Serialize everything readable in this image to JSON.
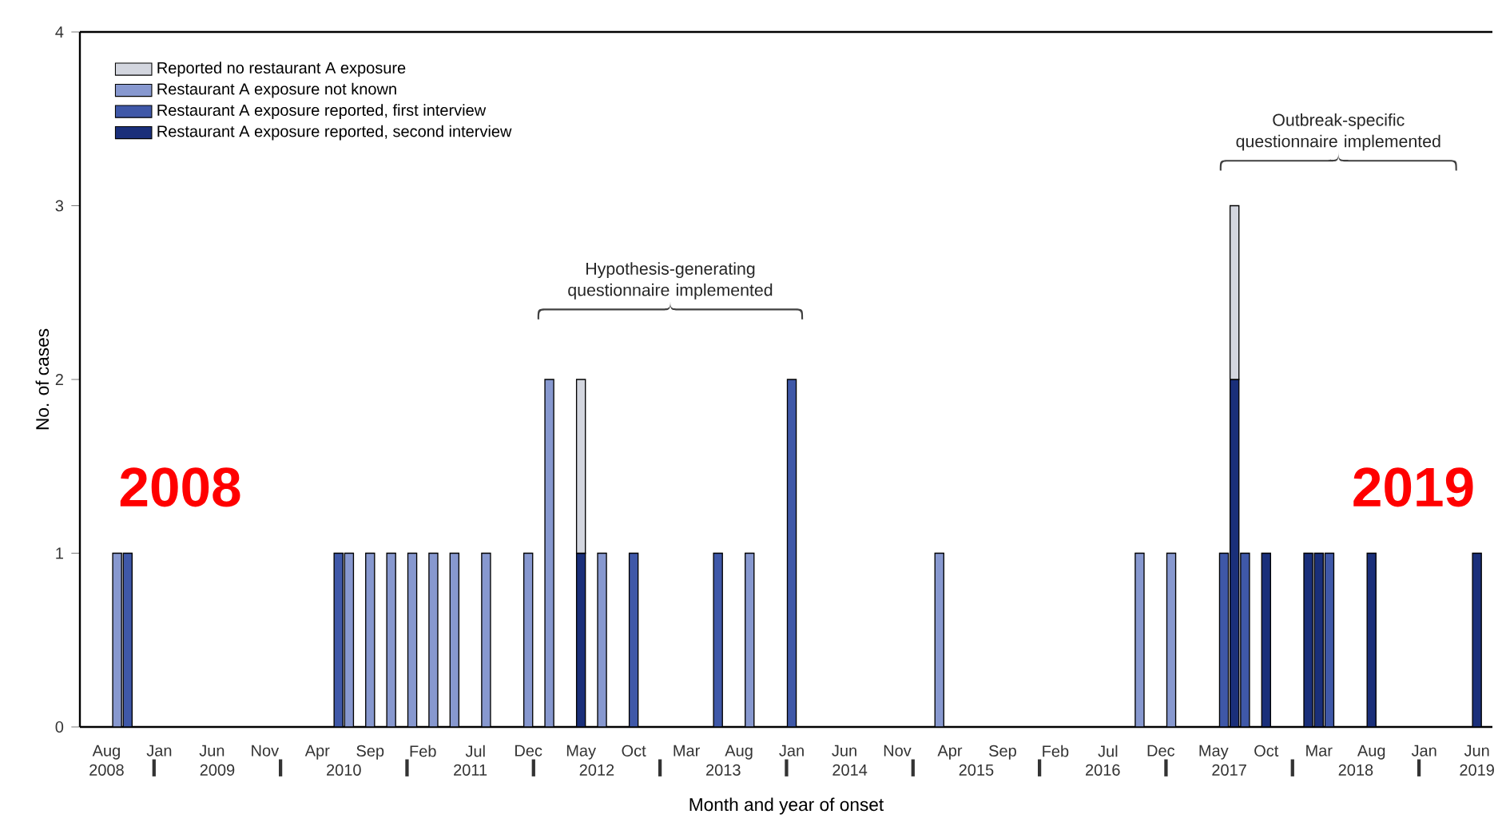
{
  "chart_data": {
    "type": "bar",
    "stacked": true,
    "xlabel": "Month and year of onset",
    "ylabel": "No. of cases",
    "xlim": [
      "2008-05-15",
      "2019-07-15"
    ],
    "ylim": [
      0,
      4
    ],
    "yticks": [
      0,
      1,
      2,
      3,
      4
    ],
    "xticks": [
      {
        "value": "2008-08",
        "label": "Aug"
      },
      {
        "value": "2009-01",
        "label": "Jan"
      },
      {
        "value": "2009-06",
        "label": "Jun"
      },
      {
        "value": "2009-11",
        "label": "Nov"
      },
      {
        "value": "2010-04",
        "label": "Apr"
      },
      {
        "value": "2010-09",
        "label": "Sep"
      },
      {
        "value": "2011-02",
        "label": "Feb"
      },
      {
        "value": "2011-07",
        "label": "Jul"
      },
      {
        "value": "2011-12",
        "label": "Dec"
      },
      {
        "value": "2012-05",
        "label": "May"
      },
      {
        "value": "2012-10",
        "label": "Oct"
      },
      {
        "value": "2013-03",
        "label": "Mar"
      },
      {
        "value": "2013-08",
        "label": "Aug"
      },
      {
        "value": "2014-01",
        "label": "Jan"
      },
      {
        "value": "2014-06",
        "label": "Jun"
      },
      {
        "value": "2014-11",
        "label": "Nov"
      },
      {
        "value": "2015-04",
        "label": "Apr"
      },
      {
        "value": "2015-09",
        "label": "Sep"
      },
      {
        "value": "2016-02",
        "label": "Feb"
      },
      {
        "value": "2016-07",
        "label": "Jul"
      },
      {
        "value": "2016-12",
        "label": "Dec"
      },
      {
        "value": "2017-05",
        "label": "May"
      },
      {
        "value": "2017-10",
        "label": "Oct"
      },
      {
        "value": "2018-03",
        "label": "Mar"
      },
      {
        "value": "2018-08",
        "label": "Aug"
      },
      {
        "value": "2019-01",
        "label": "Jan"
      },
      {
        "value": "2019-06",
        "label": "Jun"
      }
    ],
    "x2lim": [
      "2008-05-15",
      "2019-07-15"
    ],
    "x2ticks": [
      {
        "value": "2008-08-01",
        "label": "2008"
      },
      {
        "value": "2009-06-16",
        "label": "2009"
      },
      {
        "value": "2010-06-16",
        "label": "2010"
      },
      {
        "value": "2011-06-16",
        "label": "2011"
      },
      {
        "value": "2012-06-16",
        "label": "2012"
      },
      {
        "value": "2013-06-16",
        "label": "2013"
      },
      {
        "value": "2014-06-16",
        "label": "2014"
      },
      {
        "value": "2015-06-16",
        "label": "2015"
      },
      {
        "value": "2016-06-16",
        "label": "2016"
      },
      {
        "value": "2017-06-16",
        "label": "2017"
      },
      {
        "value": "2018-06-16",
        "label": "2018"
      },
      {
        "value": "2019-06-01",
        "label": "2019"
      }
    ],
    "legend": "top left",
    "x": [
      "2008-09",
      "2008-10",
      "2010-06",
      "2010-07",
      "2010-09",
      "2010-11",
      "2011-01",
      "2011-03",
      "2011-05",
      "2011-08",
      "2011-12",
      "2012-02",
      "2012-05",
      "2012-07",
      "2012-10",
      "2013-06",
      "2013-09",
      "2014-01",
      "2015-03",
      "2016-10",
      "2017-01",
      "2017-06",
      "2017-07",
      "2017-08",
      "2017-10",
      "2018-02",
      "2018-03",
      "2018-04",
      "2018-08",
      "2019-06"
    ],
    "series": [
      {
        "name": "Restaurant A exposure reported, second interview",
        "color": "#1a2f7a",
        "values": [
          null,
          null,
          null,
          null,
          null,
          null,
          null,
          null,
          null,
          null,
          null,
          null,
          1,
          null,
          null,
          null,
          null,
          null,
          null,
          null,
          null,
          null,
          2,
          null,
          1,
          1,
          1,
          null,
          1,
          1
        ]
      },
      {
        "name": "Restaurant A exposure reported, first interview",
        "color": "#3f58a8",
        "values": [
          null,
          1,
          1,
          null,
          null,
          null,
          null,
          null,
          null,
          null,
          null,
          null,
          null,
          null,
          1,
          1,
          null,
          2,
          null,
          null,
          null,
          1,
          null,
          1,
          null,
          null,
          null,
          1,
          null,
          null
        ]
      },
      {
        "name": "Restaurant A exposure not known",
        "color": "#8798cf",
        "values": [
          1,
          null,
          null,
          1,
          1,
          1,
          1,
          1,
          1,
          1,
          1,
          2,
          null,
          1,
          null,
          null,
          1,
          null,
          1,
          1,
          1,
          null,
          null,
          null,
          null,
          null,
          null,
          null,
          null,
          null
        ]
      },
      {
        "name": "Reported no restaurant A exposure",
        "color": "#d3d6df",
        "values": [
          null,
          null,
          null,
          null,
          null,
          null,
          null,
          null,
          null,
          null,
          null,
          null,
          1,
          null,
          null,
          null,
          null,
          null,
          null,
          null,
          null,
          null,
          1,
          null,
          null,
          null,
          null,
          null,
          null,
          null
        ]
      }
    ],
    "annotations": [
      "Hypothesis-generating questionnaire implemented",
      "Outbreak-specific questionnaire implemented",
      "2008",
      "2019"
    ]
  }
}
